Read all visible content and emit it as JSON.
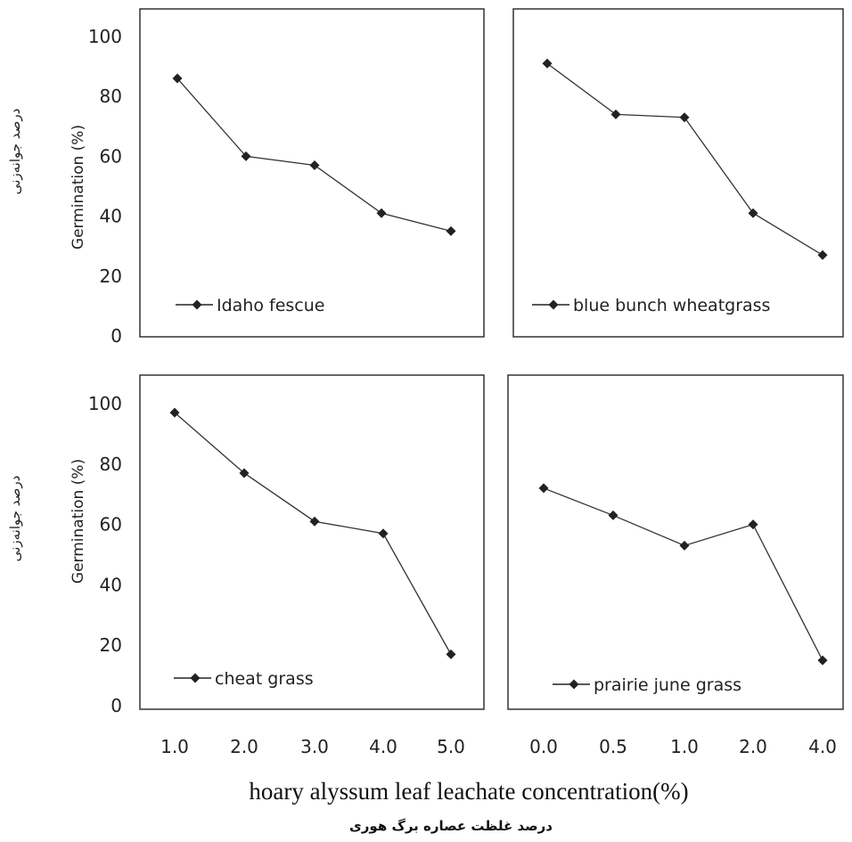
{
  "figure": {
    "xlabel": "hoary alyssum leaf leachate concentration(%)",
    "xlabel_fa": "درصد غلظت عصاره برگ هوری",
    "ylabel": "Germination (%)",
    "ylabel_fa": "درصد جوانه‌زنی"
  },
  "chart_data": [
    {
      "type": "line",
      "categories": [
        "1.0",
        "2.0",
        "3.0",
        "4.0",
        "5.0"
      ],
      "series": [
        {
          "name": "Idaho fescue",
          "values": [
            86,
            60,
            57,
            41,
            35
          ]
        }
      ],
      "ylim": [
        0,
        100
      ],
      "yticks": [
        0,
        20,
        40,
        60,
        80,
        100
      ],
      "ylabel": "Germination (%)",
      "legend_position": "bottom-left",
      "grid": false
    },
    {
      "type": "line",
      "categories": [
        "0.0",
        "0.5",
        "1.0",
        "2.0",
        "4.0"
      ],
      "series": [
        {
          "name": "blue bunch wheatgrass",
          "values": [
            91,
            74,
            73,
            41,
            27
          ]
        }
      ],
      "ylim": [
        0,
        100
      ],
      "yticks": [],
      "legend_position": "bottom-left",
      "grid": false
    },
    {
      "type": "line",
      "categories": [
        "1.0",
        "2.0",
        "3.0",
        "4.0",
        "5.0"
      ],
      "series": [
        {
          "name": "cheat grass",
          "values": [
            97,
            77,
            61,
            57,
            17
          ]
        }
      ],
      "ylim": [
        0,
        100
      ],
      "yticks": [
        0,
        20,
        40,
        60,
        80,
        100
      ],
      "ylabel": "Germination (%)",
      "legend_position": "bottom-left",
      "grid": false,
      "xticks_shown": [
        "1.0",
        "2.0",
        "3.0",
        "4.0",
        "5.0"
      ]
    },
    {
      "type": "line",
      "categories": [
        "0.0",
        "0.5",
        "1.0",
        "2.0",
        "4.0"
      ],
      "series": [
        {
          "name": "prairie june grass",
          "values": [
            72,
            63,
            53,
            60,
            15
          ]
        }
      ],
      "ylim": [
        0,
        100
      ],
      "yticks": [],
      "legend_position": "bottom-left",
      "grid": false,
      "xticks_shown": [
        "0.0",
        "0.5",
        "1.0",
        "2.0",
        "4.0"
      ]
    }
  ]
}
